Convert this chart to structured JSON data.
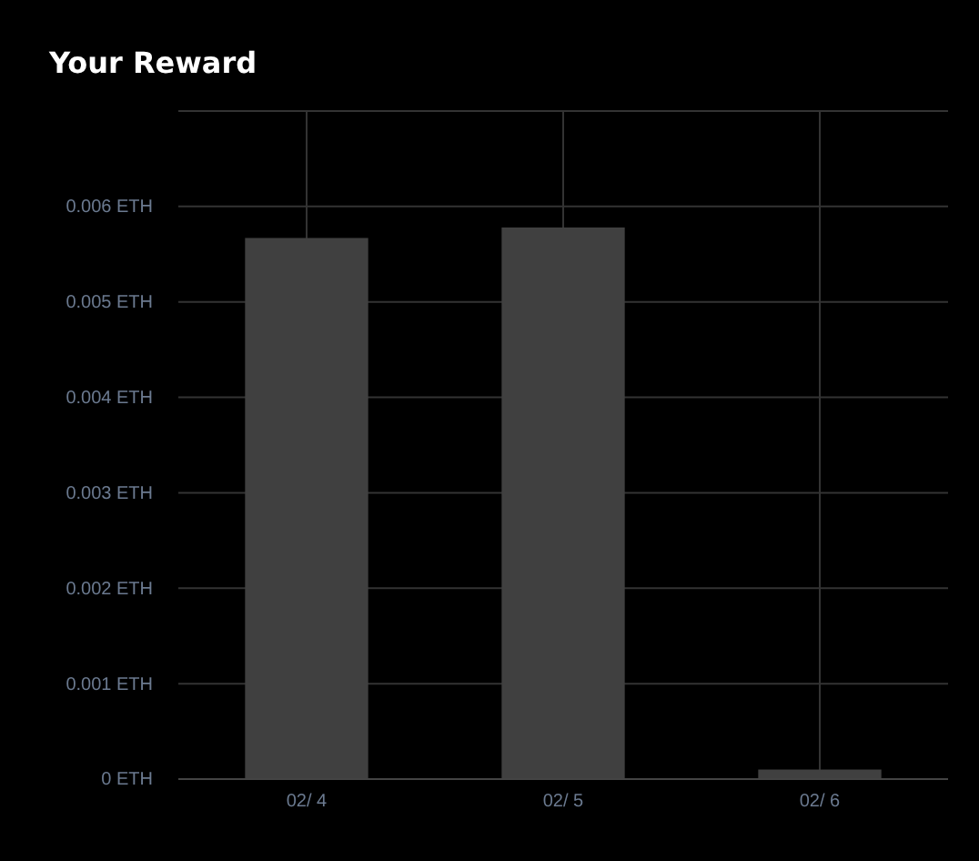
{
  "chart_data": {
    "type": "bar",
    "title": "Your Reward",
    "categories": [
      "02/ 4",
      "02/ 5",
      "02/ 6"
    ],
    "values": [
      0.00567,
      0.00578,
      0.0001
    ],
    "color": "#404040",
    "ylim": [
      0,
      0.007
    ],
    "yticks": [
      {
        "value": 0,
        "label": "0 ETH"
      },
      {
        "value": 0.001,
        "label": "0.001 ETH"
      },
      {
        "value": 0.002,
        "label": "0.002 ETH"
      },
      {
        "value": 0.003,
        "label": "0.003 ETH"
      },
      {
        "value": 0.004,
        "label": "0.004 ETH"
      },
      {
        "value": 0.005,
        "label": "0.005 ETH"
      },
      {
        "value": 0.006,
        "label": "0.006 ETH"
      },
      {
        "value": 0.007,
        "label": null
      }
    ],
    "grid": true
  }
}
